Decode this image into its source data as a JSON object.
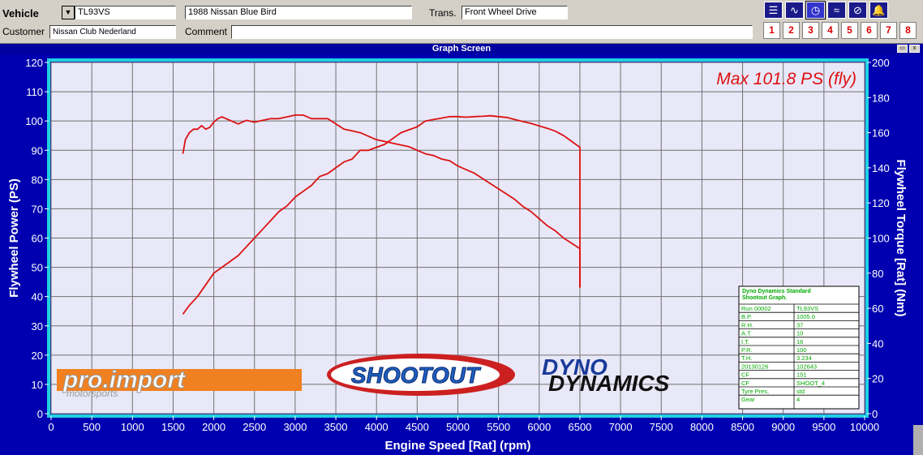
{
  "header": {
    "vehicle_label": "Vehicle",
    "vehicle_value": "TL93VS",
    "model_value": "1988 Nissan  Blue Bird",
    "trans_label": "Trans.",
    "trans_value": "Front Wheel Drive",
    "customer_label": "Customer",
    "customer_value": "Nissan Club Nederland",
    "comment_label": "Comment",
    "comment_value": "",
    "dropdown_glyph": "▼"
  },
  "toolbar": {
    "tools": [
      {
        "icon": "menu-lines-icon",
        "glyph": "☰"
      },
      {
        "icon": "curve-icon",
        "glyph": "∿"
      },
      {
        "icon": "gauge-icon",
        "glyph": "◷"
      },
      {
        "icon": "multi-curve-icon",
        "glyph": "≈"
      },
      {
        "icon": "gauge-curve-icon",
        "glyph": "⊘"
      },
      {
        "icon": "bell-icon",
        "glyph": "🔔"
      }
    ],
    "numbers": [
      "1",
      "2",
      "3",
      "4",
      "5",
      "6",
      "7",
      "8"
    ]
  },
  "window": {
    "title": "Graph Screen",
    "close_glyph": "x"
  },
  "colors": {
    "plot_bg": "#e8e8f8",
    "frame": "#20d0e0",
    "axis_text": "#ffffff",
    "curve": "#dd1111",
    "grid": "#707070",
    "outer_bg": "#0000b0"
  },
  "chart_data": {
    "type": "line",
    "annotation": "Max 101.8 PS (fly)",
    "xlabel": "Engine Speed [Rat] (rpm)",
    "ylabel": "Flywheel Power (PS)",
    "y2label": "Flywheel Torque [Rat] (Nm)",
    "xlim": [
      0,
      10000
    ],
    "ylim": [
      0,
      120
    ],
    "y2lim": [
      0,
      200
    ],
    "x_ticks": [
      0,
      500,
      1000,
      1500,
      2000,
      2500,
      3000,
      3500,
      4000,
      4500,
      5000,
      5500,
      6000,
      6500,
      7000,
      7500,
      8000,
      8500,
      9000,
      9500,
      10000
    ],
    "y_ticks": [
      0,
      10,
      20,
      30,
      40,
      50,
      60,
      70,
      80,
      90,
      100,
      110,
      120
    ],
    "y2_ticks": [
      0,
      20,
      40,
      60,
      80,
      100,
      120,
      140,
      160,
      180,
      200
    ],
    "grid": true,
    "series": [
      {
        "axis": "left",
        "x": [
          1620,
          1700,
          1800,
          1900,
          2000,
          2100,
          2200,
          2300,
          2400,
          2500,
          2600,
          2700,
          2800,
          2900,
          3000,
          3100,
          3200,
          3300,
          3400,
          3500,
          3600,
          3700,
          3800,
          3900,
          4000,
          4100,
          4200,
          4300,
          4400,
          4500,
          4600,
          4700,
          4800,
          4900,
          5000,
          5100,
          5200,
          5300,
          5400,
          5500,
          5600,
          5700,
          5800,
          5900,
          6000,
          6100,
          6200,
          6300,
          6400,
          6500,
          6500,
          6500
        ],
        "values": [
          34,
          37,
          40,
          44,
          48,
          50,
          52,
          54,
          57,
          60,
          63,
          66,
          69,
          71,
          74,
          76,
          78,
          81,
          82,
          84,
          86,
          87,
          90,
          90,
          91,
          92,
          94,
          96,
          97,
          98,
          100,
          100.5,
          101,
          101.5,
          101.5,
          101.3,
          101.5,
          101.6,
          101.8,
          101.5,
          101.2,
          100.5,
          99.8,
          99.2,
          98.3,
          97.5,
          96.5,
          95,
          93,
          91,
          68,
          43
        ]
      },
      {
        "axis": "right",
        "x": [
          1620,
          1650,
          1700,
          1750,
          1800,
          1850,
          1900,
          1950,
          2000,
          2050,
          2100,
          2200,
          2300,
          2400,
          2500,
          2600,
          2700,
          2800,
          2900,
          3000,
          3100,
          3200,
          3300,
          3400,
          3500,
          3600,
          3700,
          3800,
          3900,
          4000,
          4100,
          4200,
          4300,
          4400,
          4500,
          4600,
          4700,
          4800,
          4900,
          5000,
          5100,
          5200,
          5300,
          5400,
          5500,
          5600,
          5700,
          5800,
          5900,
          6000,
          6100,
          6200,
          6300,
          6400,
          6500,
          6500,
          6500
        ],
        "values": [
          148,
          156,
          160,
          162,
          162,
          164,
          162,
          163,
          166,
          168,
          169,
          167,
          165,
          167,
          166,
          167,
          168,
          168,
          169,
          170,
          170,
          168,
          168,
          168,
          165,
          162,
          161,
          160,
          158,
          156,
          155,
          154,
          153,
          152,
          150,
          148,
          147,
          145,
          144,
          141,
          139,
          137,
          134,
          131,
          128,
          125,
          122,
          118,
          115,
          111,
          107,
          104,
          100,
          97,
          94,
          90,
          72
        ]
      }
    ],
    "info_table": {
      "title": "Dyno Dynamics Standard Shootout Graph.",
      "rows": [
        [
          "Run 00002",
          "TL93VS"
        ],
        [
          "B.P.",
          "1005.0"
        ],
        [
          "R.H.",
          "37"
        ],
        [
          "A.T.",
          "10"
        ],
        [
          "I.T.",
          "16"
        ],
        [
          "P.R.",
          "100"
        ],
        [
          "T.H.",
          "3.234"
        ],
        [
          "20130126",
          "102643"
        ],
        [
          "CF",
          "151"
        ],
        [
          "CF",
          "SHOOT_4"
        ],
        [
          "Tyre Pres.",
          "std"
        ],
        [
          "Gear",
          "4"
        ]
      ]
    },
    "logos": {
      "pro_import": "pro.import",
      "pro_sub": "motorsports",
      "shootout": "SHOOTOUT",
      "dyno1": "DYNO",
      "dyno2": "DYNAMICS"
    }
  }
}
